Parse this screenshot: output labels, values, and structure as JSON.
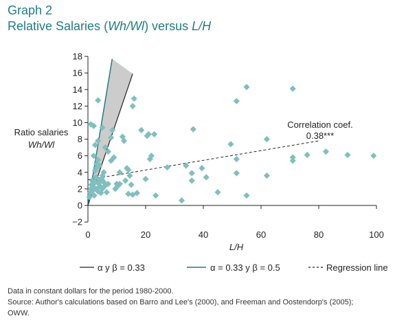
{
  "header": {
    "graph_number": "Graph 2",
    "title_prefix": "Relative Salaries (",
    "title_var1": "Wh/Wl",
    "title_middle": ") versus ",
    "title_var2": "L/H"
  },
  "notes": {
    "line1": "Data in constant dollars for the period 1980-2000.",
    "line2": "Source: Author's calculations based on Barro and Lee's (2000), and Freeman and Oostendorp's (2005);",
    "line3": "OWW."
  },
  "colors": {
    "title": "#1f7d82",
    "marker": "#7fbfbf",
    "line_teal": "#1f7d82",
    "cone_fill": "#cccccc"
  },
  "chart_data": {
    "type": "scatter",
    "xlabel": "L/H",
    "ylabel_line1": "Ratio salaries",
    "ylabel_line2": "Wh/Wl",
    "xlim": [
      0,
      100
    ],
    "ylim": [
      -2,
      18
    ],
    "x_ticks": [
      0,
      20,
      40,
      60,
      80,
      100
    ],
    "y_ticks": [
      -2,
      0,
      2,
      4,
      6,
      8,
      10,
      12,
      14,
      16,
      18
    ],
    "annotation_line1": "Correlation coef.",
    "annotation_line2": "0.38***",
    "legend": {
      "line1_label": "α y β = 0.33",
      "line2_label": "α = 0.33 y β = 0.5",
      "line3_label": "Regression line"
    },
    "regression_line": {
      "x": [
        0,
        80
      ],
      "y": [
        3.1,
        7.8
      ]
    },
    "line_black": {
      "x": [
        0,
        15.5
      ],
      "y": [
        0,
        15.9
      ]
    },
    "line_teal": {
      "x": [
        0,
        8.4
      ],
      "y": [
        0,
        17.7
      ]
    },
    "cone": {
      "x": [
        0,
        8.4,
        15.5
      ],
      "y": [
        0,
        17.7,
        15.9
      ]
    },
    "points": [
      {
        "x": 0.5,
        "y": 1.0
      },
      {
        "x": 0.8,
        "y": 1.5
      },
      {
        "x": 1.0,
        "y": 2.0
      },
      {
        "x": 1.2,
        "y": 2.5
      },
      {
        "x": 1.5,
        "y": 3.0
      },
      {
        "x": 1.7,
        "y": 1.8
      },
      {
        "x": 2.0,
        "y": 2.2
      },
      {
        "x": 2.2,
        "y": 1.2
      },
      {
        "x": 2.5,
        "y": 2.8
      },
      {
        "x": 2.8,
        "y": 3.4
      },
      {
        "x": 3.0,
        "y": 2.0
      },
      {
        "x": 3.2,
        "y": 4.6
      },
      {
        "x": 3.5,
        "y": 1.7
      },
      {
        "x": 3.8,
        "y": 2.6
      },
      {
        "x": 4.0,
        "y": 3.0
      },
      {
        "x": 4.2,
        "y": 2.3
      },
      {
        "x": 4.5,
        "y": 1.5
      },
      {
        "x": 4.8,
        "y": 3.2
      },
      {
        "x": 5.0,
        "y": 2.0
      },
      {
        "x": 5.5,
        "y": 2.8
      },
      {
        "x": 6.0,
        "y": 2.4
      },
      {
        "x": 6.5,
        "y": 1.6
      },
      {
        "x": 7.0,
        "y": 2.6
      },
      {
        "x": 2.5,
        "y": 4.2
      },
      {
        "x": 3.0,
        "y": 5.0
      },
      {
        "x": 3.5,
        "y": 5.5
      },
      {
        "x": 4.0,
        "y": 4.8
      },
      {
        "x": 2.0,
        "y": 6.0
      },
      {
        "x": 2.5,
        "y": 7.3
      },
      {
        "x": 3.5,
        "y": 7.8
      },
      {
        "x": 5.0,
        "y": 3.6
      },
      {
        "x": 5.5,
        "y": 4.0
      },
      {
        "x": 1.0,
        "y": 9.8
      },
      {
        "x": 2.0,
        "y": 9.6
      },
      {
        "x": 3.5,
        "y": 12.7
      },
      {
        "x": 5.0,
        "y": 9.4
      },
      {
        "x": 6.0,
        "y": 7.0
      },
      {
        "x": 7.0,
        "y": 6.5
      },
      {
        "x": 8.0,
        "y": 8.2
      },
      {
        "x": 8.5,
        "y": 9.1
      },
      {
        "x": 9.0,
        "y": 5.8
      },
      {
        "x": 8.0,
        "y": 5.4
      },
      {
        "x": 9.5,
        "y": 2.0
      },
      {
        "x": 10.0,
        "y": 2.6
      },
      {
        "x": 11.0,
        "y": 2.6
      },
      {
        "x": 10.5,
        "y": 2.4
      },
      {
        "x": 12.0,
        "y": 8.3
      },
      {
        "x": 12.5,
        "y": 7.8
      },
      {
        "x": 11.0,
        "y": 4.0
      },
      {
        "x": 13.0,
        "y": 3.0
      },
      {
        "x": 13.5,
        "y": 4.5
      },
      {
        "x": 14.0,
        "y": 4.3
      },
      {
        "x": 14.5,
        "y": 3.6
      },
      {
        "x": 15.0,
        "y": 2.5
      },
      {
        "x": 16.0,
        "y": 12.9
      },
      {
        "x": 15.5,
        "y": 12.0
      },
      {
        "x": 14.0,
        "y": 1.4
      },
      {
        "x": 15.5,
        "y": 1.3
      },
      {
        "x": 17.0,
        "y": 1.5
      },
      {
        "x": 18.5,
        "y": 9.1
      },
      {
        "x": 20.5,
        "y": 8.4
      },
      {
        "x": 21.0,
        "y": 8.6
      },
      {
        "x": 21.5,
        "y": 5.6
      },
      {
        "x": 22.0,
        "y": 6.0
      },
      {
        "x": 20.0,
        "y": 3.2
      },
      {
        "x": 23.0,
        "y": 8.6
      },
      {
        "x": 23.5,
        "y": 1.2
      },
      {
        "x": 27.5,
        "y": 4.6
      },
      {
        "x": 32.5,
        "y": 0.6
      },
      {
        "x": 34.0,
        "y": 4.8
      },
      {
        "x": 36.0,
        "y": 3.9
      },
      {
        "x": 36.5,
        "y": 9.2
      },
      {
        "x": 36.0,
        "y": 3.0
      },
      {
        "x": 39.5,
        "y": 4.5
      },
      {
        "x": 41.0,
        "y": 3.4
      },
      {
        "x": 45.0,
        "y": 1.6
      },
      {
        "x": 49.5,
        "y": 7.4
      },
      {
        "x": 51.5,
        "y": 12.6
      },
      {
        "x": 51.5,
        "y": 5.6
      },
      {
        "x": 51.5,
        "y": 3.9
      },
      {
        "x": 55.0,
        "y": 14.3
      },
      {
        "x": 55.0,
        "y": 1.2
      },
      {
        "x": 62.0,
        "y": 8.0
      },
      {
        "x": 62.0,
        "y": 3.6
      },
      {
        "x": 71.0,
        "y": 14.1
      },
      {
        "x": 71.0,
        "y": 5.8
      },
      {
        "x": 71.0,
        "y": 5.4
      },
      {
        "x": 76.0,
        "y": 6.1
      },
      {
        "x": 82.5,
        "y": 6.5
      },
      {
        "x": 90.0,
        "y": 6.1
      },
      {
        "x": 99.0,
        "y": 6.0
      }
    ]
  }
}
